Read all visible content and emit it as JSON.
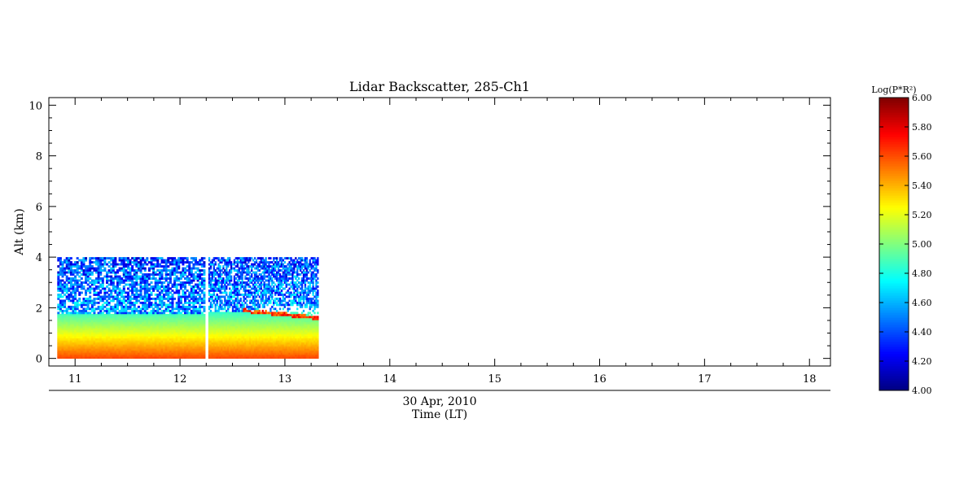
{
  "chart_data": {
    "type": "heatmap",
    "title": "Lidar Backscatter, 285-Ch1",
    "ylabel": "Alt (km)",
    "xlabel_date": "30 Apr, 2010",
    "xlabel": "Time (LT)",
    "xlim": [
      10.75,
      18.2
    ],
    "ylim": [
      -0.3,
      10.3
    ],
    "x_ticks": [
      11,
      12,
      13,
      14,
      15,
      16,
      17,
      18
    ],
    "y_ticks": [
      0,
      2,
      4,
      6,
      8,
      10
    ],
    "grid": false,
    "segments": [
      {
        "start": 10.83,
        "end": 12.24,
        "alt_top": 4.0,
        "aerosol_top": 1.8
      },
      {
        "start": 12.27,
        "end": 13.32,
        "alt_top": 4.0,
        "aerosol_top": 1.85,
        "layer": {
          "start": 12.6,
          "end": 13.32,
          "alt_start": 1.9,
          "alt_end": 1.6
        }
      }
    ],
    "colorbar": {
      "label": "Log(P*R²)",
      "min": 4.0,
      "max": 6.0,
      "ticks": [
        "4.00",
        "4.20",
        "4.40",
        "4.60",
        "4.80",
        "5.00",
        "5.20",
        "5.40",
        "5.60",
        "5.80",
        "6.00"
      ]
    }
  }
}
